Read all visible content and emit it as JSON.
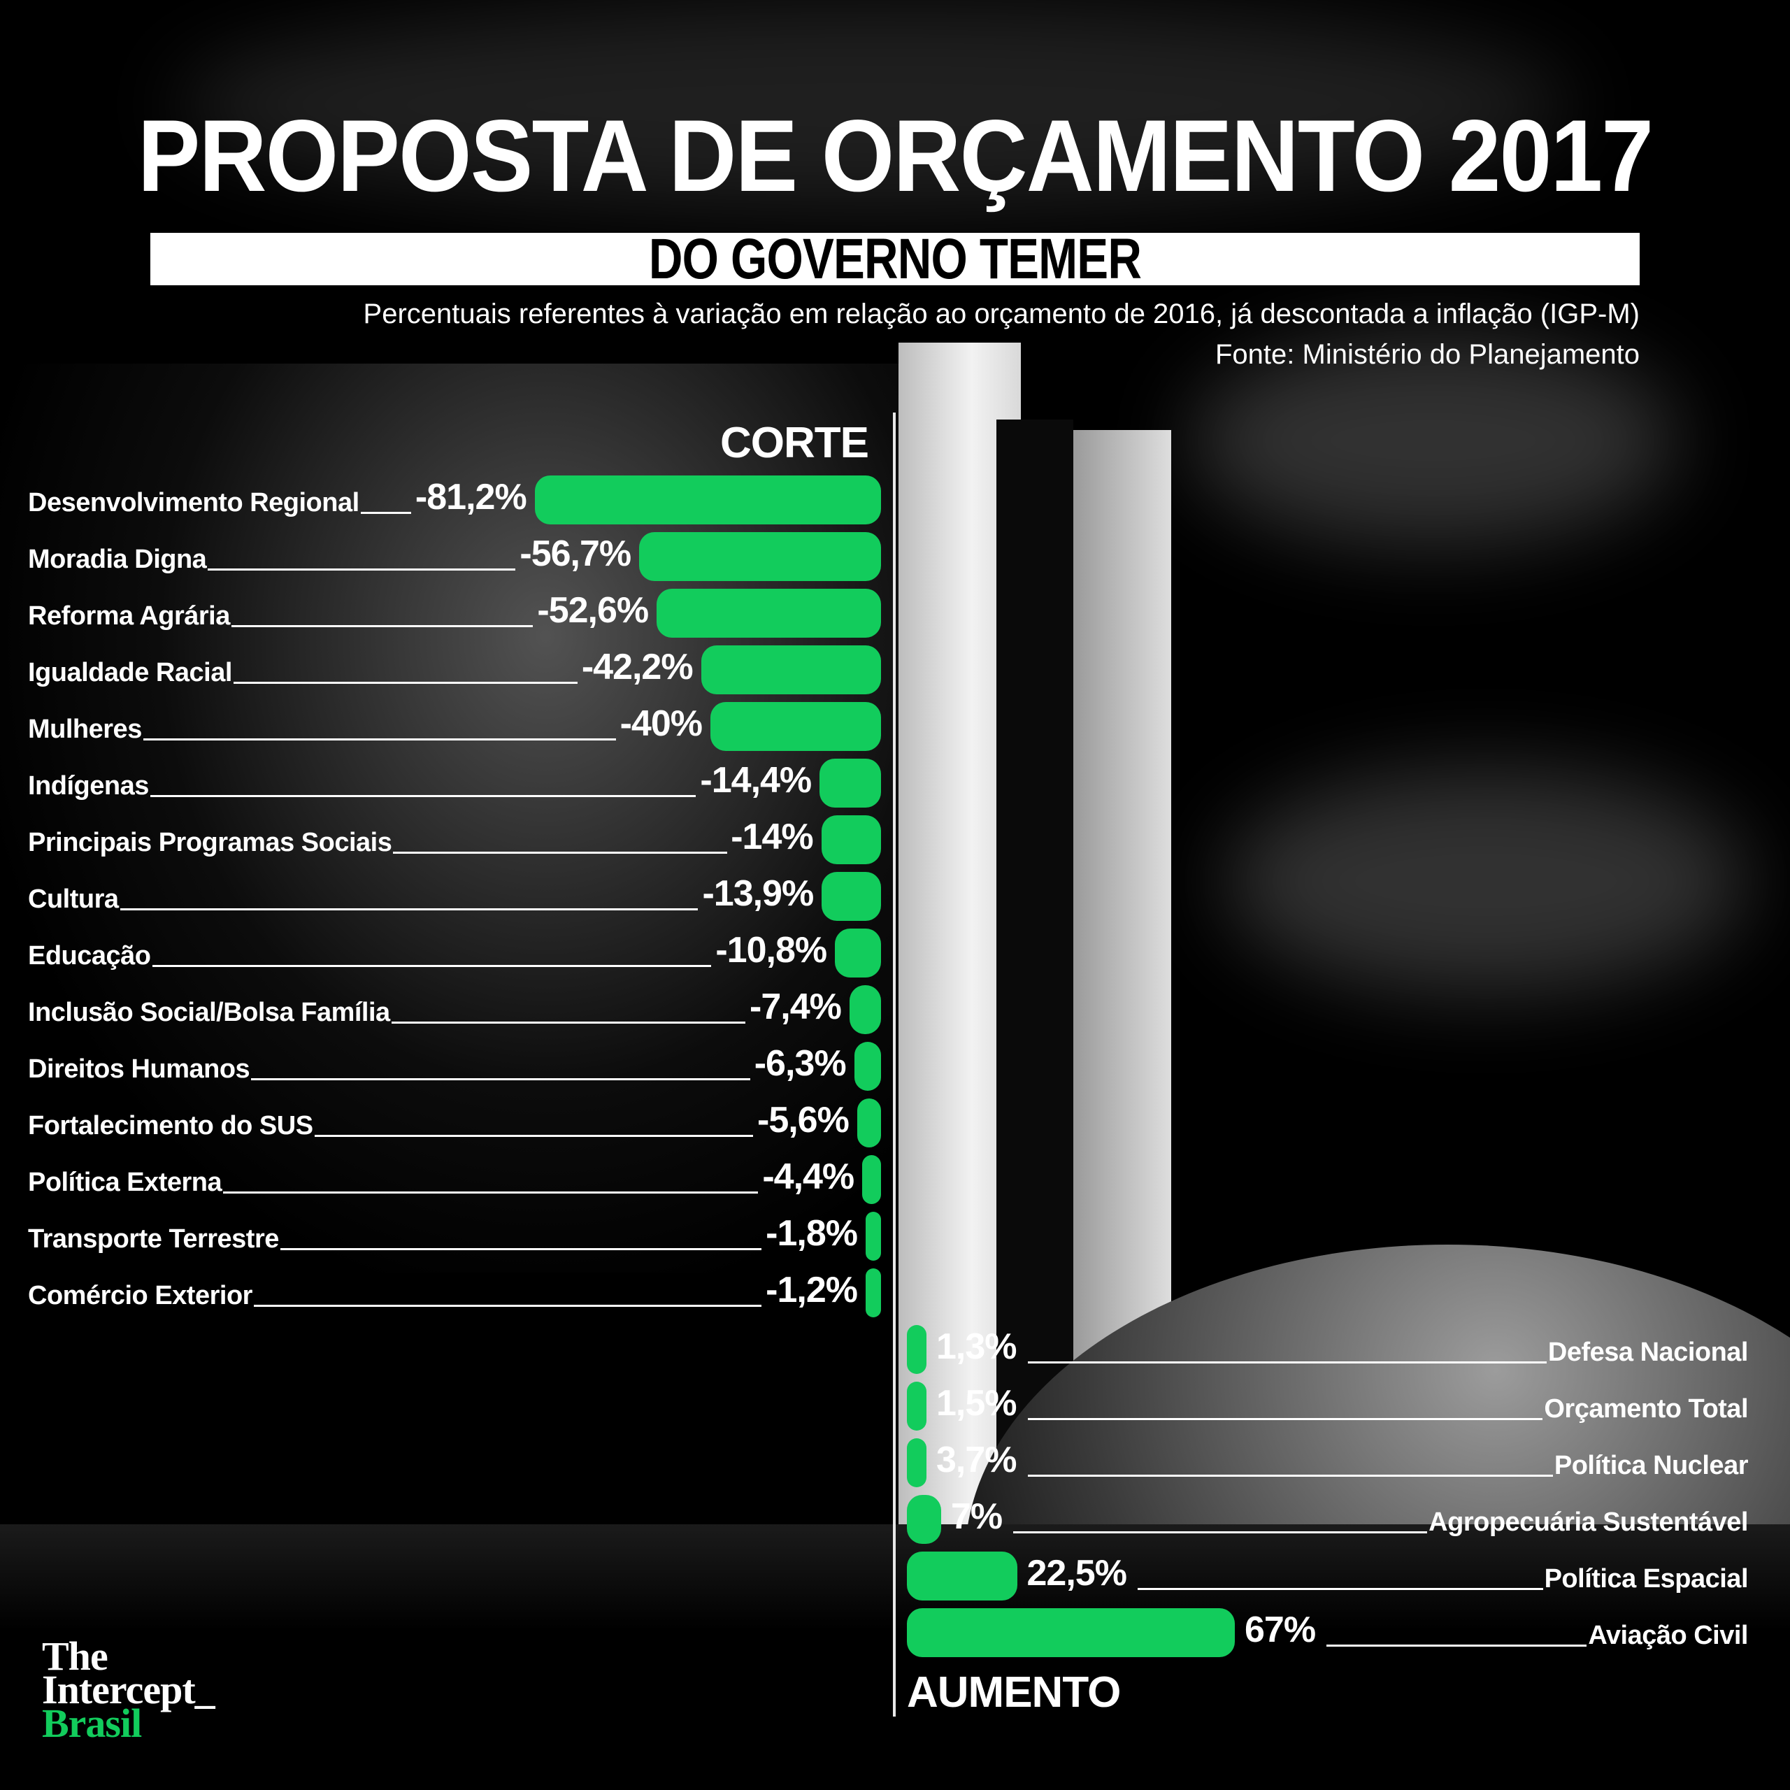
{
  "header": {
    "title": "PROPOSTA DE ORÇAMENTO 2017",
    "subtitle": "DO GOVERNO TEMER",
    "description": "Percentuais referentes à variação em relação ao  orçamento de 2016, já descontada a inflação (IGP-M)",
    "source": "Fonte: Ministério do Planejamento"
  },
  "labels": {
    "cuts": "CORTE",
    "increases": "AUMENTO"
  },
  "logo": {
    "line1": "The",
    "line2": "Intercept_",
    "line3": "Brasil"
  },
  "colors": {
    "bar": "#12cc5c",
    "background": "#000000",
    "text": "#ffffff"
  },
  "chart_data": {
    "type": "bar",
    "orientation": "horizontal",
    "title": "PROPOSTA DE ORÇAMENTO 2017 DO GOVERNO TEMER",
    "subtitle": "Percentuais referentes à variação em relação ao orçamento de 2016, já descontada a inflação (IGP-M)",
    "source": "Fonte: Ministério do Planejamento",
    "xlabel": "",
    "ylabel": "",
    "grid": false,
    "units": "%",
    "groups": [
      "CORTE",
      "AUMENTO"
    ],
    "categories": [
      "Desenvolvimento Regional",
      "Moradia Digna",
      "Reforma Agrária",
      "Igualdade Racial",
      "Mulheres",
      "Indígenas",
      "Principais Programas Sociais",
      "Cultura",
      "Educação",
      "Inclusão Social/Bolsa Família",
      "Direitos Humanos",
      "Fortalecimento do SUS",
      "Política Externa",
      "Transporte Terrestre",
      "Comércio Exterior",
      "Defesa Nacional",
      "Orçamento Total",
      "Política Nuclear",
      "Agropecuária Sustentável",
      "Política Espacial",
      "Aviação Civil"
    ],
    "values": [
      -81.2,
      -56.7,
      -52.6,
      -42.2,
      -40,
      -14.4,
      -14,
      -13.9,
      -10.8,
      -7.4,
      -6.3,
      -5.6,
      -4.4,
      -1.8,
      -1.2,
      1.3,
      1.5,
      3.7,
      7,
      22.5,
      67
    ],
    "cuts": [
      {
        "label": "Desenvolvimento Regional",
        "value": -81.2,
        "text": "-81,2%"
      },
      {
        "label": "Moradia Digna",
        "value": -56.7,
        "text": "-56,7%"
      },
      {
        "label": "Reforma Agrária",
        "value": -52.6,
        "text": "-52,6%"
      },
      {
        "label": "Igualdade Racial",
        "value": -42.2,
        "text": "-42,2%"
      },
      {
        "label": "Mulheres",
        "value": -40,
        "text": "-40%"
      },
      {
        "label": "Indígenas",
        "value": -14.4,
        "text": "-14,4%"
      },
      {
        "label": "Principais Programas Sociais",
        "value": -14,
        "text": "-14%"
      },
      {
        "label": "Cultura",
        "value": -13.9,
        "text": "-13,9%"
      },
      {
        "label": "Educação",
        "value": -10.8,
        "text": "-10,8%"
      },
      {
        "label": "Inclusão Social/Bolsa Família",
        "value": -7.4,
        "text": "-7,4%"
      },
      {
        "label": "Direitos Humanos",
        "value": -6.3,
        "text": "-6,3%"
      },
      {
        "label": "Fortalecimento do SUS",
        "value": -5.6,
        "text": "-5,6%"
      },
      {
        "label": "Política Externa",
        "value": -4.4,
        "text": "-4,4%"
      },
      {
        "label": "Transporte Terrestre",
        "value": -1.8,
        "text": "-1,8%"
      },
      {
        "label": "Comércio Exterior",
        "value": -1.2,
        "text": "-1,2%"
      }
    ],
    "increases": [
      {
        "label": "Defesa Nacional",
        "value": 1.3,
        "text": "1,3%"
      },
      {
        "label": "Orçamento Total",
        "value": 1.5,
        "text": "1,5%"
      },
      {
        "label": "Política Nuclear",
        "value": 3.7,
        "text": "3,7%"
      },
      {
        "label": "Agropecuária Sustentável",
        "value": 7,
        "text": "7%"
      },
      {
        "label": "Política Espacial",
        "value": 22.5,
        "text": "22,5%"
      },
      {
        "label": "Aviação Civil",
        "value": 67,
        "text": "67%"
      }
    ]
  }
}
